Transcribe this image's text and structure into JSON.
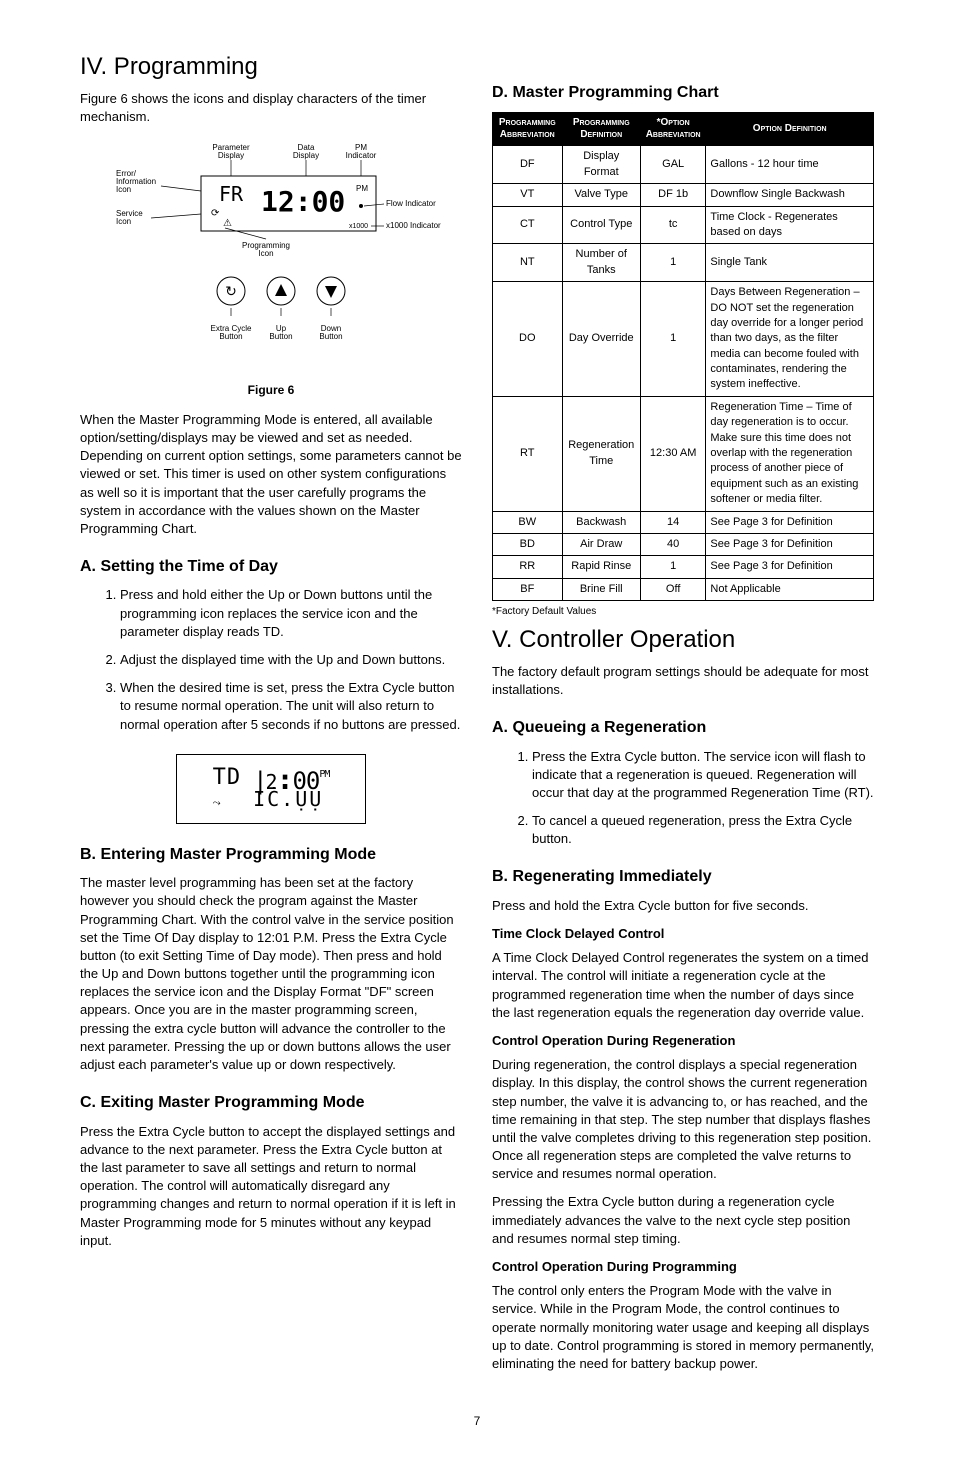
{
  "left": {
    "h1": "IV. Programming",
    "intro": "Figure 6 shows the icons and display characters of the timer mechanism.",
    "fig6": {
      "caption": "Figure 6",
      "labels": {
        "error": "Error/\nInformation\nIcon",
        "service": "Service\nIcon",
        "param": "Parameter\nDisplay",
        "data": "Data\nDisplay",
        "pm": "PM\nIndicator",
        "flow": "Flow Indicator",
        "x1000": "x1000 Indicator",
        "prog": "Programming\nIcon",
        "extra": "Extra Cycle\nButton",
        "up": "Up\nButton",
        "down": "Down\nButton"
      },
      "lcd_param": "FR",
      "lcd_data": "12:00",
      "lcd_pm": "PM",
      "lcd_x1000": "x1000"
    },
    "after_fig": "When the Master Programming Mode is entered, all available option/setting/displays may be viewed and set as needed. Depending on current option settings, some parameters cannot be viewed or set. This timer is used on other system configurations as well so it is important that the user carefully programs the system in accordance with the values shown on the Master Programming Chart.",
    "a": {
      "title": "A. Setting the Time of Day",
      "items": [
        "Press and hold either the Up or Down buttons until the programming icon replaces the service icon and the parameter display reads TD.",
        "Adjust the displayed time with the Up and Down buttons.",
        "When the desired time is set, press the Extra Cycle button to resume normal operation. The unit will also return to normal operation after 5 seconds if no buttons are pressed."
      ],
      "lcd_param": "TD",
      "lcd_data": "12:00",
      "lcd_pm": "PM"
    },
    "b": {
      "title": "B. Entering Master Programming Mode",
      "body": "The master level programming has been set at the factory however you should check the program against the Master Programming Chart. With the control valve in the service position set the Time Of Day display to 12:01 P.M. Press the Extra Cycle button (to exit Setting Time of Day mode). Then press and hold the Up and Down buttons together until the programming icon replaces the service icon and the Display Format \"DF\" screen appears. Once you are in the master programming screen, pressing the extra cycle button will advance the controller to the next parameter. Pressing the up or down buttons allows the user adjust each parameter's value up or down respectively."
    },
    "c": {
      "title": "C. Exiting Master Programming Mode",
      "body": "Press the Extra Cycle button to accept the displayed settings and advance to the next parameter. Press the Extra Cycle button at the last parameter to save all settings and return to normal operation. The control will automatically disregard any programming changes and return to normal operation if it is left in Master Programming mode for 5 minutes without any keypad input."
    }
  },
  "right": {
    "d": {
      "title": "D. Master Programming Chart",
      "headers": [
        "Programming Abbreviation",
        "Programming Definition",
        "*Option Abbreviation",
        "Option Definition"
      ],
      "rows": [
        [
          "DF",
          "Display Format",
          "GAL",
          "Gallons - 12 hour time"
        ],
        [
          "VT",
          "Valve Type",
          "DF 1b",
          "Downflow Single Backwash"
        ],
        [
          "CT",
          "Control Type",
          "tc",
          "Time Clock - Regenerates based on days"
        ],
        [
          "NT",
          "Number of Tanks",
          "1",
          "Single Tank"
        ],
        [
          "DO",
          "Day Override",
          "1",
          "Days Between Regeneration – DO NOT set the regeneration day override for a longer period than two days, as the filter media can become fouled with contaminates, rendering the system ineffective."
        ],
        [
          "RT",
          "Regeneration Time",
          "12:30 AM",
          "Regeneration Time – Time of day regeneration is to occur. Make sure this time does not overlap with the regeneration process of another piece of equipment such as an existing softener or media filter."
        ],
        [
          "BW",
          "Backwash",
          "14",
          "See Page 3 for Definition"
        ],
        [
          "BD",
          "Air Draw",
          "40",
          "See Page 3 for Definition"
        ],
        [
          "RR",
          "Rapid Rinse",
          "1",
          "See Page 3 for Definition"
        ],
        [
          "BF",
          "Brine Fill",
          "Off",
          "Not Applicable"
        ]
      ],
      "footnote": "*Factory Default Values"
    },
    "h1": "V. Controller Operation",
    "intro": "The factory default program settings should be adequate for most installations.",
    "a": {
      "title": "A. Queueing a Regeneration",
      "items": [
        "Press the Extra Cycle button. The service icon will flash to indicate that a regeneration is queued. Regeneration will occur that day at the programmed Regeneration Time (RT).",
        "To cancel a queued regeneration, press the Extra Cycle button."
      ]
    },
    "b": {
      "title": "B. Regenerating Immediately",
      "p1": "Press and hold the Extra Cycle button for five seconds.",
      "sub1": "Time Clock Delayed Control",
      "p2": "A Time Clock Delayed Control regenerates the system on a timed interval. The control will initiate a regeneration cycle at the programmed regeneration time when the number of days since the last regeneration equals the regeneration day override value.",
      "sub2": "Control Operation During Regeneration",
      "p3": "During regeneration, the control displays a special regeneration display. In this display, the control shows the current regeneration step number, the valve it is advancing to, or has reached, and the time remaining in that step. The step number that displays flashes until the valve completes driving to this regeneration step position. Once all regeneration steps are completed the valve returns to service and resumes normal operation.",
      "p4": "Pressing the Extra Cycle button during a regeneration cycle immediately advances the valve to the next cycle step position and resumes normal step timing.",
      "sub3": "Control Operation During Programming",
      "p5": "The control only enters the Program Mode with the valve in service. While in the Program Mode, the control continues to operate normally monitoring water usage and keeping all displays up to date. Control programming is stored in memory permanently, eliminating the need for battery backup power."
    }
  },
  "pagenum": "7"
}
